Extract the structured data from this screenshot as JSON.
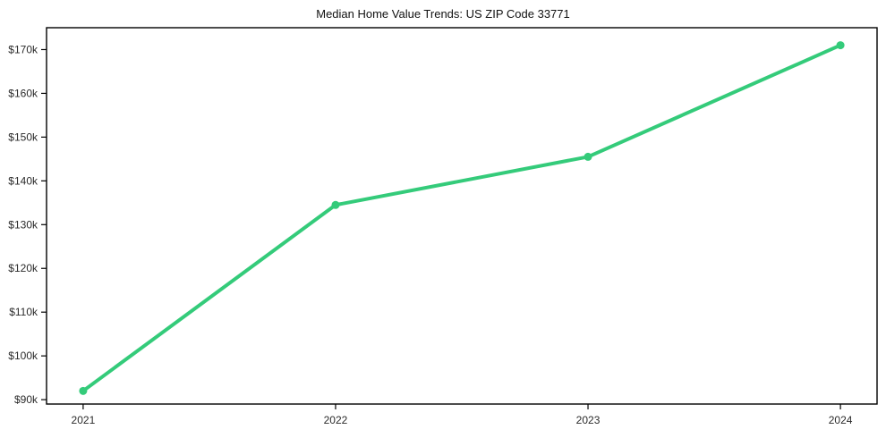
{
  "figure": {
    "title": "Median Home Value Trends: US ZIP Code 33771"
  },
  "chart_data": {
    "type": "line",
    "title": "Median Home Value Trends: US ZIP Code 33771",
    "xlabel": "",
    "ylabel": "",
    "x": [
      2021,
      2022,
      2023,
      2024
    ],
    "x_labels": [
      "2021",
      "2022",
      "2023",
      "2024"
    ],
    "series": [
      {
        "name": "Median Home Value",
        "unit": "USD thousands",
        "values": [
          92.0,
          134.5,
          145.5,
          171.0
        ]
      }
    ],
    "y_ticks": [
      90,
      100,
      110,
      120,
      130,
      140,
      150,
      160,
      170
    ],
    "y_tick_labels": [
      "$90k",
      "$100k",
      "$110k",
      "$120k",
      "$130k",
      "$140k",
      "$150k",
      "$160k",
      "$170k"
    ],
    "xlim": [
      2020.855,
      2024.145
    ],
    "ylim": [
      89,
      175
    ],
    "grid": false,
    "legend": "none",
    "line_color": "#34cb7a",
    "marker": "circle",
    "axis_color": "#000000",
    "tick_label_color": "#2b2b2b"
  }
}
